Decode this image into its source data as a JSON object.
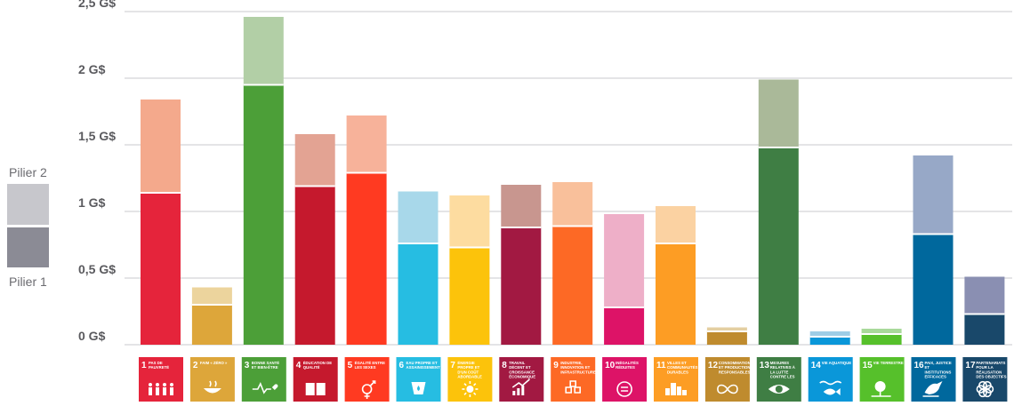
{
  "chart_data": {
    "type": "bar",
    "stacked": true,
    "y_ticks": [
      "0 G$",
      "0,5 G$",
      "1 G$",
      "1,5 G$",
      "2 G$",
      "2,5 G$"
    ],
    "y_tick_values": [
      0,
      0.5,
      1,
      1.5,
      2,
      2.5
    ],
    "ylim": [
      0,
      2.5
    ],
    "legend": [
      {
        "label": "Pilier 2",
        "color": "#c7c7cc"
      },
      {
        "label": "Pilier 1",
        "color": "#8b8b95"
      }
    ],
    "categories": [
      {
        "num": "1",
        "label": "PAS DE PAUVRETÉ",
        "color": "#e5243b",
        "light": "#f4a98c",
        "icon": "family-icon"
      },
      {
        "num": "2",
        "label": "FAIM « ZÉRO »",
        "color": "#dda63a",
        "light": "#ecd49d",
        "icon": "bowl-icon"
      },
      {
        "num": "3",
        "label": "BONNE SANTÉ ET BIEN-ÊTRE",
        "color": "#4c9f38",
        "light": "#b2cfa6",
        "icon": "heartbeat-icon"
      },
      {
        "num": "4",
        "label": "ÉDUCATION DE QUALITÉ",
        "color": "#c5192d",
        "light": "#e3a393",
        "icon": "book-icon"
      },
      {
        "num": "5",
        "label": "ÉGALITÉ ENTRE LES SEXES",
        "color": "#ff3a21",
        "light": "#f7b29a",
        "icon": "gender-icon"
      },
      {
        "num": "6",
        "label": "EAU PROPRE ET ASSAINISSEMENT",
        "color": "#26bde2",
        "light": "#a8d8ea",
        "icon": "water-drop-icon"
      },
      {
        "num": "7",
        "label": "ÉNERGIE PROPRE ET D'UN COÛT ABORDABLE",
        "color": "#fcc30b",
        "light": "#fddca0",
        "icon": "sun-icon"
      },
      {
        "num": "8",
        "label": "TRAVAIL DÉCENT ET CROISSANCE ÉCONOMIQUE",
        "color": "#a21942",
        "light": "#c8968f",
        "icon": "growth-chart-icon"
      },
      {
        "num": "9",
        "label": "INDUSTRIE, INNOVATION ET INFRASTRUCTURE",
        "color": "#fd6925",
        "light": "#f9c09b",
        "icon": "cubes-icon"
      },
      {
        "num": "10",
        "label": "INÉGALITÉS RÉDUITES",
        "color": "#dd1367",
        "light": "#eeafc8",
        "icon": "equal-icon"
      },
      {
        "num": "11",
        "label": "VILLES ET COMMUNAUTÉS DURABLES",
        "color": "#fd9d24",
        "light": "#fbd2a2",
        "icon": "city-icon"
      },
      {
        "num": "12",
        "label": "CONSOMMATION ET PRODUCTION RESPONSABLES",
        "color": "#bf8b2e",
        "light": "#e4cfa2",
        "icon": "infinity-icon"
      },
      {
        "num": "13",
        "label": "MESURES RELATIVES À LA LUTTE CONTRE LES CHANGEMENTS CLIMATIQUES",
        "color": "#3f7e44",
        "light": "#aab999",
        "icon": "eye-globe-icon"
      },
      {
        "num": "14",
        "label": "VIE AQUATIQUE",
        "color": "#0a97d9",
        "light": "#9ecde6",
        "icon": "fish-icon"
      },
      {
        "num": "15",
        "label": "VIE TERRESTRE",
        "color": "#56c02b",
        "light": "#a8d99a",
        "icon": "tree-icon"
      },
      {
        "num": "16",
        "label": "PAIX, JUSTICE ET INSTITUTIONS EFFICACES",
        "color": "#00689d",
        "light": "#97a8c7",
        "icon": "dove-icon"
      },
      {
        "num": "17",
        "label": "PARTENARIATS POUR LA RÉALISATION DES OBJECTIFS",
        "color": "#19486a",
        "light": "#8a8fb2",
        "icon": "flower-ring-icon"
      }
    ],
    "series": [
      {
        "name": "Pilier 1",
        "values": [
          1.14,
          0.3,
          1.95,
          1.19,
          1.29,
          0.76,
          0.73,
          0.88,
          0.89,
          0.28,
          0.76,
          0.1,
          1.48,
          0.06,
          0.08,
          0.83,
          0.23
        ]
      },
      {
        "name": "Pilier 2",
        "values": [
          0.7,
          0.13,
          0.51,
          0.39,
          0.43,
          0.39,
          0.39,
          0.32,
          0.33,
          0.7,
          0.28,
          0.03,
          0.51,
          0.04,
          0.04,
          0.59,
          0.28
        ]
      }
    ]
  }
}
